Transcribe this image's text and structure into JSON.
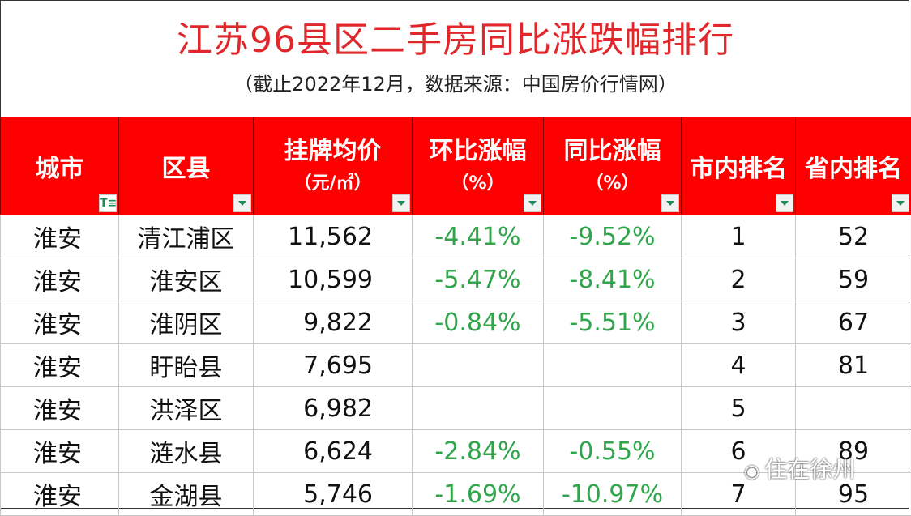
{
  "title": "江苏96县区二手房同比涨跌幅排行",
  "subtitle": "（截止2022年12月，数据来源：中国房价行情网）",
  "headers": {
    "city": "城市",
    "district": "区县",
    "price": "挂牌均价",
    "price_unit": "（元/㎡）",
    "mom": "环比涨幅",
    "mom_unit": "（%）",
    "yoy": "同比涨幅",
    "yoy_unit": "（%）",
    "city_rank": "市内排名",
    "prov_rank": "省内排名"
  },
  "filter_icon_glyph": "T≡",
  "rows": [
    {
      "city": "淮安",
      "district": "清江浦区",
      "price": "11,562",
      "mom": "-4.41%",
      "yoy": "-9.52%",
      "city_rank": "1",
      "prov_rank": "52"
    },
    {
      "city": "淮安",
      "district": "淮安区",
      "price": "10,599",
      "mom": "-5.47%",
      "yoy": "-8.41%",
      "city_rank": "2",
      "prov_rank": "59"
    },
    {
      "city": "淮安",
      "district": "淮阴区",
      "price": "9,822",
      "mom": "-0.84%",
      "yoy": "-5.51%",
      "city_rank": "3",
      "prov_rank": "67"
    },
    {
      "city": "淮安",
      "district": "盱眙县",
      "price": "7,695",
      "mom": "",
      "yoy": "",
      "city_rank": "4",
      "prov_rank": "81"
    },
    {
      "city": "淮安",
      "district": "洪泽区",
      "price": "6,982",
      "mom": "",
      "yoy": "",
      "city_rank": "5",
      "prov_rank": ""
    },
    {
      "city": "淮安",
      "district": "涟水县",
      "price": "6,624",
      "mom": "-2.84%",
      "yoy": "-0.55%",
      "city_rank": "6",
      "prov_rank": "89"
    },
    {
      "city": "淮安",
      "district": "金湖县",
      "price": "5,746",
      "mom": "-1.69%",
      "yoy": "-10.97%",
      "city_rank": "7",
      "prov_rank": "95"
    }
  ],
  "watermark": "住在徐州",
  "colors": {
    "header_bg": "#ff0000",
    "title": "#e0282c",
    "pct": "#2fa64a"
  }
}
